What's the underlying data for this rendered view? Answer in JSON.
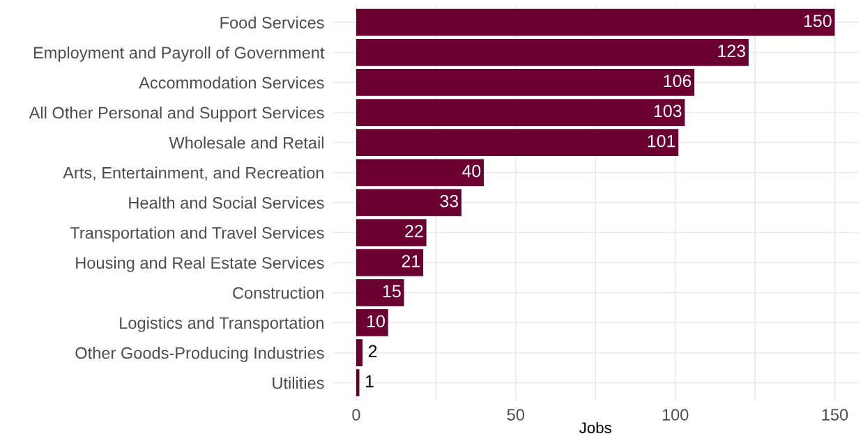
{
  "chart_data": {
    "type": "bar",
    "orientation": "horizontal",
    "xlabel": "Jobs",
    "categories": [
      "Food Services",
      "Employment and Payroll of Government",
      "Accommodation Services",
      "All Other Personal and Support Services",
      "Wholesale and Retail",
      "Arts, Entertainment, and Recreation",
      "Health and Social Services",
      "Transportation and Travel Services",
      "Housing and Real Estate Services",
      "Construction",
      "Logistics and Transportation",
      "Other Goods-Producing Industries",
      "Utilities"
    ],
    "values": [
      150,
      123,
      106,
      103,
      101,
      40,
      33,
      22,
      21,
      15,
      10,
      2,
      1
    ],
    "color": "#6b0030",
    "xlim": [
      -7.5,
      157.5
    ],
    "xticks": [
      0,
      {
        "value": 25,
        "label": null
      },
      50,
      {
        "value": 75,
        "label": null
      },
      100,
      {
        "value": 125,
        "label": null
      },
      150
    ],
    "grid": true,
    "data_labels": true
  }
}
